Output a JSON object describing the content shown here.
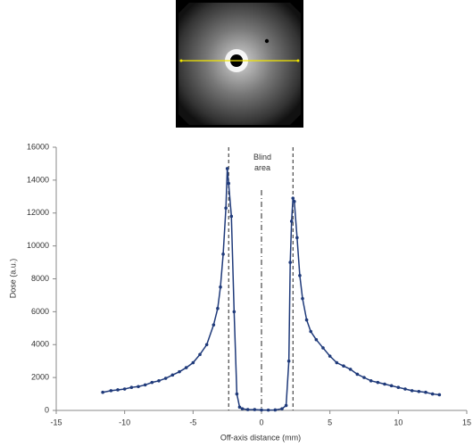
{
  "chart_data": {
    "type": "line",
    "xlabel": "Off-axis distance (mm)",
    "ylabel": "Dose (a.u.)",
    "x": [
      -11.6,
      -11,
      -10.5,
      -10,
      -9.5,
      -9,
      -8.5,
      -8,
      -7.5,
      -7,
      -6.5,
      -6,
      -5.5,
      -5,
      -4.5,
      -4,
      -3.5,
      -3.2,
      -3,
      -2.8,
      -2.6,
      -2.5,
      -2.4,
      -2.2,
      -2,
      -1.8,
      -1.6,
      -1.4,
      -1,
      -0.5,
      0,
      0.5,
      1,
      1.5,
      1.8,
      2,
      2.1,
      2.2,
      2.3,
      2.4,
      2.6,
      2.8,
      3,
      3.3,
      3.6,
      4,
      4.5,
      5,
      5.5,
      6,
      6.5,
      7,
      7.5,
      8,
      8.5,
      9,
      9.5,
      10,
      10.5,
      11,
      11.5,
      12,
      12.5,
      13
    ],
    "values": [
      1100,
      1200,
      1250,
      1300,
      1400,
      1450,
      1550,
      1700,
      1800,
      1950,
      2150,
      2350,
      2600,
      2900,
      3400,
      4000,
      5200,
      6200,
      7500,
      9500,
      12300,
      14700,
      13800,
      11800,
      6000,
      1000,
      200,
      100,
      50,
      50,
      30,
      20,
      30,
      100,
      300,
      3000,
      9000,
      11500,
      12900,
      12700,
      10500,
      8200,
      6800,
      5500,
      4800,
      4300,
      3800,
      3300,
      2900,
      2700,
      2500,
      2200,
      2000,
      1800,
      1700,
      1600,
      1500,
      1400,
      1300,
      1200,
      1150,
      1100,
      1000,
      950
    ],
    "color": "#1f3a7a",
    "xlim": [
      -15,
      15
    ],
    "xticks": [
      -15,
      -10,
      -5,
      0,
      5,
      10,
      15
    ],
    "ylim": [
      0,
      16000
    ],
    "yticks": [
      0,
      2000,
      4000,
      6000,
      8000,
      10000,
      12000,
      14000,
      16000
    ],
    "vlines": [
      {
        "x": -2.4,
        "dash": "dashed"
      },
      {
        "x": 2.3,
        "dash": "dashed"
      },
      {
        "x": 0,
        "dash": "dashdot",
        "top": 13400
      }
    ],
    "annotation": "Blind area"
  }
}
